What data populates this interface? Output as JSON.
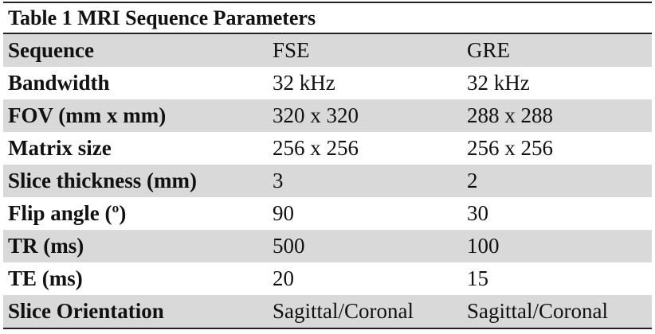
{
  "table": {
    "title": "Table 1 MRI Sequence Parameters",
    "header": [
      "Sequence",
      "FSE",
      "GRE"
    ],
    "rows": [
      [
        "Bandwidth",
        "32 kHz",
        "32 kHz"
      ],
      [
        "FOV (mm x mm)",
        "320 x 320",
        "288 x 288"
      ],
      [
        "Matrix size",
        "256 x 256",
        "256 x 256"
      ],
      [
        "Slice thickness (mm)",
        "3",
        "2"
      ],
      [
        "Flip angle (º)",
        "90",
        "30"
      ],
      [
        "TR (ms)",
        "500",
        "100"
      ],
      [
        "TE (ms)",
        "20",
        "15"
      ],
      [
        "Slice Orientation",
        "Sagittal/Coronal",
        "Sagittal/Coronal"
      ]
    ]
  }
}
